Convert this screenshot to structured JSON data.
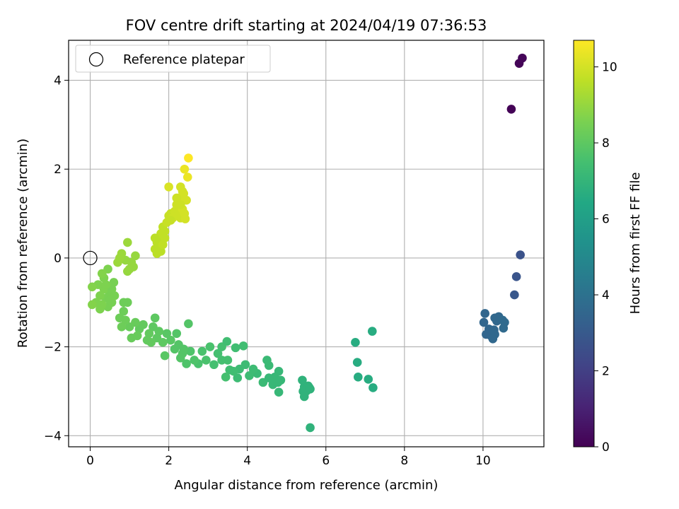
{
  "chart_data": {
    "type": "scatter",
    "title": "FOV centre drift starting at 2024/04/19 07:36:53",
    "xlabel": "Angular distance from reference (arcmin)",
    "ylabel": "Rotation from reference (arcmin)",
    "xlim": [
      -0.55,
      11.55
    ],
    "ylim": [
      -4.25,
      4.9
    ],
    "x_ticks": [
      0,
      2,
      4,
      6,
      8,
      10
    ],
    "y_ticks": [
      -4,
      -2,
      0,
      2,
      4
    ],
    "grid": true,
    "legend": {
      "placement": "top-left",
      "entries": [
        "Reference platepar"
      ]
    },
    "reference_point": {
      "x": 0,
      "y": 0
    },
    "colorbar": {
      "label": "Hours from first FF file",
      "range": [
        0,
        10.7
      ],
      "ticks": [
        0,
        2,
        4,
        6,
        8,
        10
      ],
      "colormap": "viridis"
    },
    "series": [
      {
        "points": [
          [
            10.72,
            3.35,
            0.05
          ],
          [
            10.92,
            4.38,
            0.1
          ],
          [
            11.0,
            4.5,
            0.15
          ],
          [
            10.95,
            0.07,
            2.7
          ],
          [
            10.85,
            -0.42,
            2.8
          ],
          [
            10.8,
            -0.83,
            2.9
          ],
          [
            10.05,
            -1.25,
            3.5
          ],
          [
            10.02,
            -1.45,
            3.5
          ],
          [
            10.15,
            -1.6,
            3.5
          ],
          [
            10.08,
            -1.72,
            3.5
          ],
          [
            10.2,
            -1.75,
            3.5
          ],
          [
            10.3,
            -1.72,
            3.6
          ],
          [
            10.25,
            -1.82,
            3.6
          ],
          [
            10.3,
            -1.35,
            3.6
          ],
          [
            10.4,
            -1.32,
            3.6
          ],
          [
            10.35,
            -1.42,
            3.6
          ],
          [
            10.5,
            -1.4,
            3.7
          ],
          [
            10.55,
            -1.45,
            3.7
          ],
          [
            10.52,
            -1.58,
            3.7
          ],
          [
            10.28,
            -1.62,
            3.6
          ],
          [
            6.75,
            -1.9,
            6.6
          ],
          [
            7.18,
            -1.65,
            6.6
          ],
          [
            6.8,
            -2.35,
            6.6
          ],
          [
            6.82,
            -2.68,
            6.6
          ],
          [
            7.08,
            -2.73,
            6.6
          ],
          [
            7.2,
            -2.92,
            6.6
          ],
          [
            5.6,
            -3.82,
            6.9
          ],
          [
            5.4,
            -2.75,
            6.9
          ],
          [
            5.45,
            -2.9,
            6.9
          ],
          [
            5.55,
            -2.88,
            6.9
          ],
          [
            5.5,
            -3.0,
            6.9
          ],
          [
            5.42,
            -3.0,
            6.9
          ],
          [
            5.45,
            -3.12,
            6.9
          ],
          [
            5.6,
            -2.95,
            6.9
          ],
          [
            4.8,
            -3.02,
            7.1
          ],
          [
            4.7,
            -2.68,
            7.1
          ],
          [
            4.8,
            -2.55,
            7.1
          ],
          [
            4.85,
            -2.75,
            7.1
          ],
          [
            4.65,
            -2.85,
            7.1
          ],
          [
            4.55,
            -2.42,
            7.2
          ],
          [
            4.5,
            -2.3,
            7.2
          ],
          [
            4.4,
            -2.8,
            7.2
          ],
          [
            4.25,
            -2.6,
            7.2
          ],
          [
            4.15,
            -2.5,
            7.3
          ],
          [
            4.05,
            -2.65,
            7.3
          ],
          [
            3.95,
            -2.4,
            7.3
          ],
          [
            3.8,
            -2.5,
            7.3
          ],
          [
            3.75,
            -2.7,
            7.3
          ],
          [
            3.9,
            -1.98,
            7.4
          ],
          [
            3.65,
            -2.55,
            7.4
          ],
          [
            3.55,
            -2.52,
            7.4
          ],
          [
            3.5,
            -2.3,
            7.5
          ],
          [
            3.45,
            -2.68,
            7.5
          ],
          [
            3.35,
            -2.0,
            7.5
          ],
          [
            3.25,
            -2.15,
            7.5
          ],
          [
            3.15,
            -2.4,
            7.5
          ],
          [
            3.05,
            -2.0,
            7.6
          ],
          [
            2.95,
            -2.3,
            7.6
          ],
          [
            2.85,
            -2.1,
            7.6
          ],
          [
            2.75,
            -2.38,
            7.6
          ],
          [
            2.65,
            -2.3,
            7.7
          ],
          [
            2.55,
            -2.1,
            7.7
          ],
          [
            2.45,
            -2.38,
            7.7
          ],
          [
            2.35,
            -2.15,
            7.8
          ],
          [
            2.25,
            -1.95,
            7.8
          ],
          [
            2.15,
            -2.05,
            7.8
          ],
          [
            2.5,
            -1.48,
            7.8
          ],
          [
            2.3,
            -2.25,
            7.8
          ],
          [
            3.48,
            -1.88,
            7.4
          ],
          [
            3.7,
            -2.02,
            7.4
          ],
          [
            4.55,
            -2.7,
            7.1
          ],
          [
            4.78,
            -2.8,
            7.1
          ],
          [
            5.58,
            -2.92,
            6.9
          ],
          [
            3.35,
            -2.3,
            7.5
          ],
          [
            2.05,
            -1.85,
            7.9
          ],
          [
            1.95,
            -1.7,
            7.9
          ],
          [
            1.9,
            -2.2,
            7.9
          ],
          [
            1.85,
            -1.9,
            8.0
          ],
          [
            1.75,
            -1.65,
            8.0
          ],
          [
            1.7,
            -1.8,
            8.0
          ],
          [
            1.6,
            -1.55,
            8.0
          ],
          [
            1.5,
            -1.7,
            8.1
          ],
          [
            1.45,
            -1.85,
            8.1
          ],
          [
            1.35,
            -1.5,
            8.1
          ],
          [
            1.25,
            -1.6,
            8.1
          ],
          [
            1.2,
            -1.75,
            8.2
          ],
          [
            1.15,
            -1.45,
            8.2
          ],
          [
            1.05,
            -1.8,
            8.2
          ],
          [
            1.0,
            -1.55,
            8.2
          ],
          [
            0.9,
            -1.4,
            8.3
          ],
          [
            0.85,
            -1.2,
            8.3
          ],
          [
            0.95,
            -1.0,
            8.3
          ],
          [
            0.8,
            -1.55,
            8.3
          ],
          [
            0.75,
            -1.35,
            8.3
          ],
          [
            0.85,
            -1.0,
            8.3
          ],
          [
            1.65,
            -1.35,
            8.0
          ],
          [
            2.2,
            -1.7,
            7.8
          ],
          [
            2.38,
            -2.05,
            7.8
          ],
          [
            1.55,
            -1.9,
            8.1
          ],
          [
            0.55,
            -1.0,
            8.5
          ],
          [
            0.5,
            -0.8,
            8.5
          ],
          [
            0.45,
            -1.1,
            8.5
          ],
          [
            0.4,
            -0.9,
            8.5
          ],
          [
            0.35,
            -0.7,
            8.6
          ],
          [
            0.3,
            -1.05,
            8.6
          ],
          [
            0.25,
            -0.85,
            8.6
          ],
          [
            0.2,
            -0.6,
            8.6
          ],
          [
            0.15,
            -1.0,
            8.6
          ],
          [
            0.05,
            -0.65,
            8.7
          ],
          [
            0.05,
            -1.05,
            8.7
          ],
          [
            0.6,
            -0.55,
            8.5
          ],
          [
            0.55,
            -0.7,
            8.5
          ],
          [
            0.62,
            -0.85,
            8.5
          ],
          [
            0.35,
            -0.45,
            8.6
          ],
          [
            0.25,
            -1.15,
            8.6
          ],
          [
            0.45,
            -0.25,
            8.6
          ],
          [
            0.3,
            -0.35,
            8.7
          ],
          [
            0.5,
            -0.95,
            8.5
          ],
          [
            0.4,
            -0.6,
            8.6
          ],
          [
            0.95,
            -0.3,
            9.0
          ],
          [
            0.9,
            -0.05,
            9.0
          ],
          [
            1.1,
            -0.2,
            9.0
          ],
          [
            1.15,
            0.05,
            9.0
          ],
          [
            1.05,
            -0.1,
            9.0
          ],
          [
            0.8,
            0.1,
            9.1
          ],
          [
            0.75,
            0.0,
            9.1
          ],
          [
            0.95,
            0.35,
            9.1
          ],
          [
            0.7,
            -0.1,
            9.1
          ],
          [
            1.0,
            -0.25,
            9.0
          ],
          [
            1.65,
            0.2,
            9.6
          ],
          [
            1.7,
            0.35,
            9.6
          ],
          [
            1.75,
            0.45,
            9.6
          ],
          [
            1.8,
            0.55,
            9.7
          ],
          [
            1.85,
            0.7,
            9.7
          ],
          [
            1.9,
            0.6,
            9.7
          ],
          [
            1.95,
            0.8,
            9.8
          ],
          [
            2.0,
            0.95,
            9.8
          ],
          [
            2.05,
            1.0,
            9.8
          ],
          [
            1.7,
            0.1,
            9.6
          ],
          [
            1.65,
            0.45,
            9.6
          ],
          [
            1.75,
            0.25,
            9.6
          ],
          [
            1.8,
            0.15,
            9.6
          ],
          [
            1.85,
            0.3,
            9.7
          ],
          [
            1.9,
            0.45,
            9.7
          ],
          [
            2.1,
            0.9,
            9.9
          ],
          [
            2.15,
            1.05,
            9.9
          ],
          [
            2.2,
            1.2,
            9.9
          ],
          [
            2.25,
            1.35,
            10.0
          ],
          [
            2.3,
            1.6,
            10.0
          ],
          [
            2.25,
            1.0,
            9.9
          ],
          [
            2.3,
            0.9,
            9.9
          ],
          [
            2.35,
            1.1,
            10.0
          ],
          [
            2.4,
            1.0,
            10.0
          ],
          [
            2.45,
            1.3,
            10.0
          ],
          [
            2.38,
            1.45,
            10.0
          ],
          [
            2.35,
            1.5,
            10.0
          ],
          [
            2.42,
            0.88,
            10.0
          ],
          [
            2.2,
            1.35,
            9.9
          ],
          [
            2.0,
            1.6,
            10.1
          ],
          [
            2.4,
            2.0,
            10.4
          ],
          [
            2.48,
            1.82,
            10.4
          ],
          [
            2.5,
            2.25,
            10.7
          ],
          [
            2.3,
            1.2,
            9.9
          ],
          [
            2.05,
            0.85,
            9.8
          ]
        ]
      }
    ]
  }
}
